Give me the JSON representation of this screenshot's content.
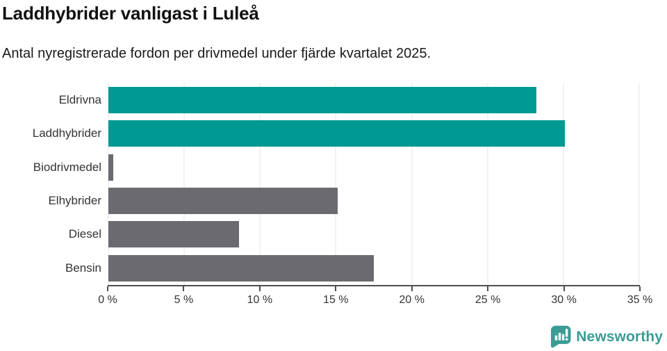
{
  "title": "Laddhybrider vanligast i Luleå",
  "subtitle": "Antal nyregistrerade fordon per drivmedel under fjärde kvartalet 2025.",
  "colors": {
    "teal": "#009a93",
    "gray": "#6b6a70",
    "grid": "#e6e6e6",
    "axis": "#4d4d4d",
    "label": "#333333",
    "title": "#111111",
    "logo": "#3b9c95",
    "background": "#ffffff"
  },
  "chart_data": {
    "type": "bar",
    "orientation": "horizontal",
    "title": "Laddhybrider vanligast i Luleå",
    "subtitle": "Antal nyregistrerade fordon per drivmedel under fjärde kvartalet 2025.",
    "categories": [
      "Eldrivna",
      "Laddhybrider",
      "Biodrivmedel",
      "Elhybrider",
      "Diesel",
      "Bensin"
    ],
    "values": [
      28.2,
      30.1,
      0.3,
      15.1,
      8.6,
      17.5
    ],
    "unit": "%",
    "bar_colors": [
      "#009a93",
      "#009a93",
      "#6b6a70",
      "#6b6a70",
      "#6b6a70",
      "#6b6a70"
    ],
    "highlight_color": "#009a93",
    "default_color": "#6b6a70",
    "xlim": [
      0,
      35
    ],
    "x_tick_values": [
      0,
      5,
      10,
      15,
      20,
      25,
      30,
      35
    ],
    "x_tick_labels": [
      "0 %",
      "5 %",
      "10 %",
      "15 %",
      "20 %",
      "25 %",
      "30 %",
      "35 %"
    ],
    "xlabel": "",
    "ylabel": "",
    "grid": true,
    "legend": false
  },
  "footer": {
    "brand": "Newsworthy",
    "logo_icon": "bar-chart-speech-bubble-icon"
  }
}
